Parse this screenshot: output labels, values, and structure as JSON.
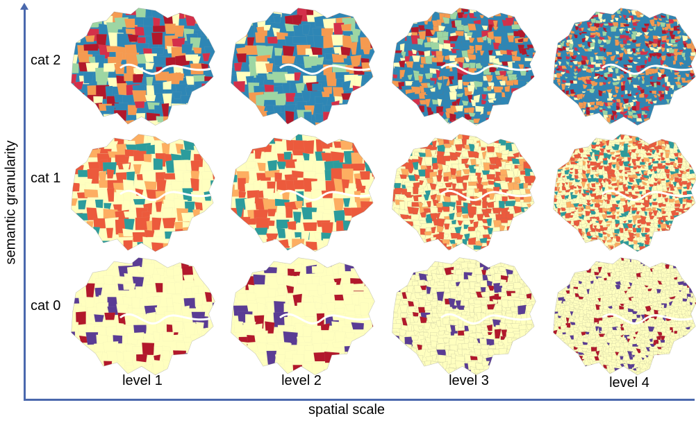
{
  "axes": {
    "y_title": "semantic granularity",
    "x_title": "spatial scale"
  },
  "rows": [
    {
      "label": "cat 2",
      "palette": [
        "#2e86b5",
        "#2e86b5",
        "#2e86b5",
        "#f59a50",
        "#f59a50",
        "#9dd6a3",
        "#ffffbf",
        "#d4304a",
        "#b2182b"
      ]
    },
    {
      "label": "cat 1",
      "palette": [
        "#ffffbf",
        "#ffffbf",
        "#ec5a3c",
        "#ec5a3c",
        "#ec5a3c",
        "#fdae61",
        "#2c9c9c"
      ]
    },
    {
      "label": "cat 0",
      "palette": [
        "#ffffbf",
        "#ffffbf",
        "#ffffbf",
        "#ffffbf",
        "#ffffbf",
        "#ffffbf",
        "#ffffbf",
        "#ffffbf",
        "#5a3c94",
        "#b2182b"
      ]
    }
  ],
  "columns": [
    {
      "label": "level 1",
      "detail": 1
    },
    {
      "label": "level 2",
      "detail": 1
    },
    {
      "label": "level 3",
      "detail": 2
    },
    {
      "label": "level 4",
      "detail": 3
    }
  ],
  "colors": {
    "axis": "#4a68ad",
    "river": "#ffffff",
    "boundary_fill": "#ffffbf"
  }
}
